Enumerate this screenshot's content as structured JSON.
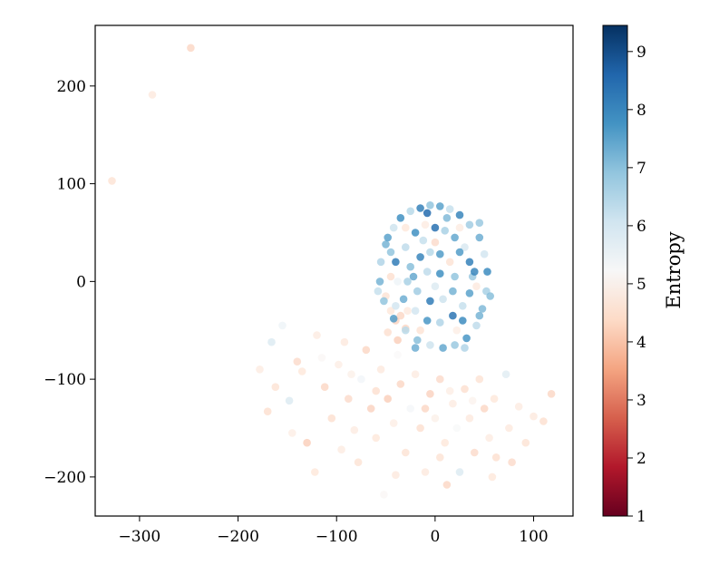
{
  "chart_data": {
    "type": "scatter",
    "title": "",
    "xlabel": "",
    "ylabel": "",
    "xlim": [
      -345,
      140
    ],
    "ylim": [
      -240,
      262
    ],
    "xticks": [
      -300,
      -200,
      -100,
      0,
      100
    ],
    "yticks": [
      -200,
      -100,
      0,
      100,
      200
    ],
    "xtick_labels": [
      "−300",
      "−200",
      "−100",
      "0",
      "100"
    ],
    "ytick_labels": [
      "−200",
      "−100",
      "0",
      "100",
      "200"
    ],
    "grid": false,
    "colormap": "RdBu",
    "colorbar": {
      "label": "Entropy",
      "range": [
        1,
        9.45
      ],
      "ticks": [
        1,
        2,
        3,
        4,
        5,
        6,
        7,
        8,
        9
      ],
      "tick_labels": [
        "1",
        "2",
        "3",
        "4",
        "5",
        "6",
        "7",
        "8",
        "9"
      ]
    },
    "series": [
      {
        "points": [
          {
            "x": -328,
            "y": 103,
            "c": 4.3
          },
          {
            "x": -287,
            "y": 191,
            "c": 4.5
          },
          {
            "x": -248,
            "y": 239,
            "c": 4.0
          },
          {
            "x": -155,
            "y": -45,
            "c": 5.6
          },
          {
            "x": -166,
            "y": -62,
            "c": 5.8
          },
          {
            "x": -178,
            "y": -90,
            "c": 4.6
          },
          {
            "x": -162,
            "y": -108,
            "c": 4.3
          },
          {
            "x": -170,
            "y": -133,
            "c": 4.2
          },
          {
            "x": -148,
            "y": -122,
            "c": 5.8
          },
          {
            "x": -140,
            "y": -82,
            "c": 4.1
          },
          {
            "x": -135,
            "y": -92,
            "c": 4.4
          },
          {
            "x": -120,
            "y": -55,
            "c": 4.6
          },
          {
            "x": -112,
            "y": -108,
            "c": 4.0
          },
          {
            "x": -130,
            "y": -165,
            "c": 3.8
          },
          {
            "x": -122,
            "y": -195,
            "c": 4.4
          },
          {
            "x": -105,
            "y": -140,
            "c": 4.2
          },
          {
            "x": -98,
            "y": -85,
            "c": 4.7
          },
          {
            "x": -92,
            "y": -62,
            "c": 4.5
          },
          {
            "x": -88,
            "y": -120,
            "c": 4.1
          },
          {
            "x": -82,
            "y": -152,
            "c": 4.6
          },
          {
            "x": -78,
            "y": -185,
            "c": 4.3
          },
          {
            "x": -75,
            "y": -100,
            "c": 5.5
          },
          {
            "x": -70,
            "y": -70,
            "c": 4.0
          },
          {
            "x": -65,
            "y": -130,
            "c": 3.9
          },
          {
            "x": -60,
            "y": -160,
            "c": 4.4
          },
          {
            "x": -55,
            "y": -90,
            "c": 4.5
          },
          {
            "x": -52,
            "y": -218,
            "c": 5.1
          },
          {
            "x": -48,
            "y": -120,
            "c": 3.8
          },
          {
            "x": -42,
            "y": -145,
            "c": 4.7
          },
          {
            "x": -38,
            "y": -75,
            "c": 5.2
          },
          {
            "x": -35,
            "y": -105,
            "c": 4.0
          },
          {
            "x": -30,
            "y": -175,
            "c": 4.3
          },
          {
            "x": -25,
            "y": -130,
            "c": 5.4
          },
          {
            "x": -20,
            "y": -95,
            "c": 4.6
          },
          {
            "x": -15,
            "y": -150,
            "c": 4.2
          },
          {
            "x": -10,
            "y": -195,
            "c": 4.5
          },
          {
            "x": -5,
            "y": -115,
            "c": 3.9
          },
          {
            "x": 0,
            "y": -140,
            "c": 4.8
          },
          {
            "x": 5,
            "y": -100,
            "c": 4.1
          },
          {
            "x": 10,
            "y": -165,
            "c": 4.4
          },
          {
            "x": 12,
            "y": -208,
            "c": 4.0
          },
          {
            "x": 18,
            "y": -125,
            "c": 4.6
          },
          {
            "x": 22,
            "y": -150,
            "c": 5.3
          },
          {
            "x": 25,
            "y": -195,
            "c": 5.8
          },
          {
            "x": 30,
            "y": -110,
            "c": 4.2
          },
          {
            "x": 35,
            "y": -140,
            "c": 4.5
          },
          {
            "x": 40,
            "y": -175,
            "c": 4.1
          },
          {
            "x": 45,
            "y": -100,
            "c": 4.3
          },
          {
            "x": 50,
            "y": -130,
            "c": 4.0
          },
          {
            "x": 55,
            "y": -160,
            "c": 4.6
          },
          {
            "x": 60,
            "y": -120,
            "c": 4.4
          },
          {
            "x": 62,
            "y": -180,
            "c": 4.2
          },
          {
            "x": 72,
            "y": -95,
            "c": 5.7
          },
          {
            "x": 75,
            "y": -150,
            "c": 4.5
          },
          {
            "x": 78,
            "y": -185,
            "c": 4.1
          },
          {
            "x": 85,
            "y": -128,
            "c": 4.6
          },
          {
            "x": 92,
            "y": -165,
            "c": 4.3
          },
          {
            "x": 100,
            "y": -138,
            "c": 4.5
          },
          {
            "x": 110,
            "y": -143,
            "c": 4.2
          },
          {
            "x": 118,
            "y": -115,
            "c": 4.0
          },
          {
            "x": -145,
            "y": -155,
            "c": 4.7
          },
          {
            "x": -115,
            "y": -78,
            "c": 5.1
          },
          {
            "x": -85,
            "y": -95,
            "c": 4.8
          },
          {
            "x": -60,
            "y": -112,
            "c": 4.2
          },
          {
            "x": -10,
            "y": -130,
            "c": 4.0
          },
          {
            "x": 15,
            "y": -112,
            "c": 4.7
          },
          {
            "x": 38,
            "y": -122,
            "c": 4.9
          },
          {
            "x": -95,
            "y": -172,
            "c": 4.6
          },
          {
            "x": -40,
            "y": -198,
            "c": 4.5
          },
          {
            "x": 5,
            "y": -180,
            "c": 4.3
          },
          {
            "x": 58,
            "y": -200,
            "c": 4.4
          },
          {
            "x": -40,
            "y": -40,
            "c": 3.9
          },
          {
            "x": -48,
            "y": -52,
            "c": 4.2
          },
          {
            "x": -38,
            "y": -60,
            "c": 3.8
          },
          {
            "x": -45,
            "y": -30,
            "c": 4.4
          },
          {
            "x": -30,
            "y": -48,
            "c": 4.0
          },
          {
            "x": -28,
            "y": -30,
            "c": 4.5
          },
          {
            "x": -50,
            "y": -15,
            "c": 4.3
          },
          {
            "x": -55,
            "y": 20,
            "c": 6.5
          },
          {
            "x": -50,
            "y": 38,
            "c": 7.2
          },
          {
            "x": -42,
            "y": 55,
            "c": 6.1
          },
          {
            "x": -35,
            "y": 65,
            "c": 7.8
          },
          {
            "x": -25,
            "y": 72,
            "c": 6.4
          },
          {
            "x": -15,
            "y": 75,
            "c": 8.1
          },
          {
            "x": -5,
            "y": 78,
            "c": 6.9
          },
          {
            "x": 5,
            "y": 77,
            "c": 7.5
          },
          {
            "x": 15,
            "y": 74,
            "c": 6.2
          },
          {
            "x": 25,
            "y": 68,
            "c": 8.0
          },
          {
            "x": 35,
            "y": 58,
            "c": 6.7
          },
          {
            "x": 45,
            "y": 45,
            "c": 7.3
          },
          {
            "x": 50,
            "y": 28,
            "c": 6.0
          },
          {
            "x": 53,
            "y": 10,
            "c": 7.9
          },
          {
            "x": 52,
            "y": -10,
            "c": 6.6
          },
          {
            "x": 48,
            "y": -28,
            "c": 7.1
          },
          {
            "x": 42,
            "y": -45,
            "c": 6.3
          },
          {
            "x": 32,
            "y": -58,
            "c": 7.7
          },
          {
            "x": 20,
            "y": -65,
            "c": 6.8
          },
          {
            "x": 8,
            "y": -68,
            "c": 7.4
          },
          {
            "x": -5,
            "y": -65,
            "c": 6.1
          },
          {
            "x": -18,
            "y": -60,
            "c": 7.0
          },
          {
            "x": -30,
            "y": -50,
            "c": 6.4
          },
          {
            "x": -42,
            "y": -38,
            "c": 7.6
          },
          {
            "x": -52,
            "y": -20,
            "c": 6.9
          },
          {
            "x": -56,
            "y": 0,
            "c": 7.2
          },
          {
            "x": -40,
            "y": 20,
            "c": 8.2
          },
          {
            "x": -30,
            "y": 35,
            "c": 6.3
          },
          {
            "x": -20,
            "y": 50,
            "c": 7.8
          },
          {
            "x": -10,
            "y": 58,
            "c": 4.6
          },
          {
            "x": 0,
            "y": 55,
            "c": 8.4
          },
          {
            "x": 10,
            "y": 52,
            "c": 6.6
          },
          {
            "x": 20,
            "y": 45,
            "c": 7.4
          },
          {
            "x": 30,
            "y": 35,
            "c": 5.9
          },
          {
            "x": 35,
            "y": 20,
            "c": 8.1
          },
          {
            "x": 38,
            "y": 5,
            "c": 6.8
          },
          {
            "x": 35,
            "y": -12,
            "c": 7.5
          },
          {
            "x": 28,
            "y": -25,
            "c": 6.2
          },
          {
            "x": 18,
            "y": -35,
            "c": 8.3
          },
          {
            "x": 5,
            "y": -42,
            "c": 6.5
          },
          {
            "x": -8,
            "y": -40,
            "c": 7.7
          },
          {
            "x": -20,
            "y": -30,
            "c": 6.0
          },
          {
            "x": -32,
            "y": -18,
            "c": 7.3
          },
          {
            "x": -38,
            "y": 0,
            "c": 5.6
          },
          {
            "x": -25,
            "y": 15,
            "c": 7.0
          },
          {
            "x": -15,
            "y": 25,
            "c": 8.0
          },
          {
            "x": -5,
            "y": 30,
            "c": 6.4
          },
          {
            "x": 5,
            "y": 28,
            "c": 7.6
          },
          {
            "x": 15,
            "y": 20,
            "c": 4.3
          },
          {
            "x": 20,
            "y": 5,
            "c": 6.9
          },
          {
            "x": 18,
            "y": -10,
            "c": 7.2
          },
          {
            "x": 8,
            "y": -18,
            "c": 6.1
          },
          {
            "x": -5,
            "y": -20,
            "c": 8.2
          },
          {
            "x": -18,
            "y": -10,
            "c": 6.7
          },
          {
            "x": -22,
            "y": 5,
            "c": 7.4
          },
          {
            "x": -8,
            "y": 10,
            "c": 6.3
          },
          {
            "x": 5,
            "y": 8,
            "c": 7.8
          },
          {
            "x": 0,
            "y": -5,
            "c": 5.8
          },
          {
            "x": -30,
            "y": 55,
            "c": 4.4
          },
          {
            "x": 25,
            "y": 55,
            "c": 4.6
          },
          {
            "x": -45,
            "y": 5,
            "c": 4.2
          },
          {
            "x": 42,
            "y": -5,
            "c": 4.5
          },
          {
            "x": -15,
            "y": -50,
            "c": 4.3
          },
          {
            "x": 22,
            "y": -50,
            "c": 4.7
          },
          {
            "x": 0,
            "y": 40,
            "c": 4.1
          },
          {
            "x": -35,
            "y": -35,
            "c": 4.0
          },
          {
            "x": -48,
            "y": 45,
            "c": 7.5
          },
          {
            "x": 45,
            "y": 60,
            "c": 6.8
          },
          {
            "x": -58,
            "y": -10,
            "c": 6.2
          },
          {
            "x": 56,
            "y": -15,
            "c": 7.0
          },
          {
            "x": 30,
            "y": -68,
            "c": 6.5
          },
          {
            "x": -20,
            "y": -68,
            "c": 7.3
          },
          {
            "x": -8,
            "y": 70,
            "c": 8.5
          },
          {
            "x": 12,
            "y": 65,
            "c": 7.1
          },
          {
            "x": 40,
            "y": 10,
            "c": 8.0
          },
          {
            "x": -45,
            "y": 30,
            "c": 6.9
          },
          {
            "x": 25,
            "y": 30,
            "c": 7.6
          },
          {
            "x": -12,
            "y": 42,
            "c": 6.2
          },
          {
            "x": 28,
            "y": -40,
            "c": 7.9
          },
          {
            "x": -28,
            "y": 0,
            "c": 6.6
          },
          {
            "x": 45,
            "y": -35,
            "c": 7.2
          },
          {
            "x": -40,
            "y": -25,
            "c": 6.0
          }
        ]
      }
    ]
  }
}
